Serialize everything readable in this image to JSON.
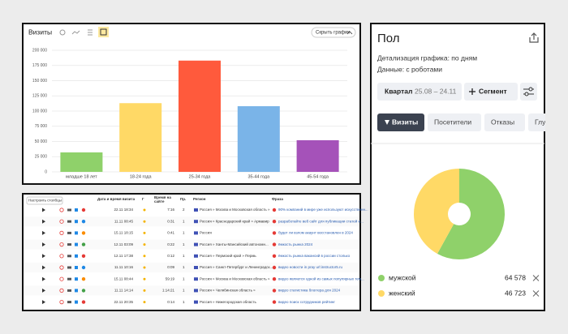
{
  "chart_data": [
    {
      "type": "bar",
      "title": "Визиты",
      "hide_button": "Скрыть график",
      "categories": [
        "младше 18 лет",
        "18-24 года",
        "25-34 года",
        "35-44 года",
        "45-54 года"
      ],
      "values": [
        32000,
        113000,
        183000,
        108000,
        52000
      ],
      "colors": [
        "#8fd16a",
        "#ffd966",
        "#ff5a3c",
        "#7ab4e8",
        "#a552b9"
      ],
      "ylim": [
        0,
        200000
      ],
      "yticks": [
        {
          "value": 0,
          "label": "0"
        },
        {
          "value": 25000,
          "label": "25 000"
        },
        {
          "value": 50000,
          "label": "50 000"
        },
        {
          "value": 75000,
          "label": "75 000"
        },
        {
          "value": 100000,
          "label": "100 000"
        },
        {
          "value": 125000,
          "label": "125 000"
        },
        {
          "value": 150000,
          "label": "150 000"
        },
        {
          "value": 175000,
          "label": "175 000"
        },
        {
          "value": 200000,
          "label": "200 000"
        }
      ],
      "grid": true
    },
    {
      "type": "pie",
      "title": "Пол",
      "categories": [
        "мужской",
        "женский"
      ],
      "values": [
        64578,
        46723
      ],
      "value_labels": [
        "64 578",
        "46 723"
      ],
      "colors": [
        "#8fd16a",
        "#ffd966"
      ]
    }
  ],
  "report_panel": {
    "detail": "Детализация графика: по дням",
    "data": "Данные: с роботами",
    "period": "Квартал",
    "period_range": "25.08 – 24.11",
    "segment": "Сегмент",
    "tabs": [
      "Визиты",
      "Посетители",
      "Отказы",
      "Глу"
    ]
  },
  "table": {
    "settings_button": "Настроить столбцы",
    "columns": [
      "Дата и время визита",
      "Г",
      "Время на сайте",
      "Пр.",
      "Регион",
      "Фраза"
    ],
    "rows": [
      [
        "22.11 18:34",
        "7:16",
        "2",
        "Россия » Москва и Московская область »",
        "90% компаний в мире уже используют искусственн..."
      ],
      [
        "11.11 08:45",
        "0:31",
        "1",
        "Россия » Краснодарский край » Армавир",
        "разработайте веб сайт для публикации статей и..."
      ],
      [
        "15.11 18:15",
        "0:41",
        "1",
        "Россия",
        "будет ли взлом акаунт восстановлен в 2024"
      ],
      [
        "12.11 03:09",
        "0:22",
        "1",
        "Россия » Ханты-Мансийский автономн...",
        "ёмкость рынка 2024"
      ],
      [
        "12.11 17:38",
        "0:12",
        "1",
        "Россия » Пермский край » Пермь",
        "ёмкость рынка вакансий в россии столько"
      ],
      [
        "11.11 10:16",
        "0:09",
        "1",
        "Россия » Санкт-Петербург и Ленинградск...",
        "видео новости in pray url:instructor5.ru"
      ],
      [
        "15.11 08:44",
        "59:19",
        "1",
        "Россия » Москва и Московская область »",
        "видео является одной из самых популярных тем..."
      ],
      [
        "11.11 14:14",
        "1:14:21",
        "1",
        "Россия » Челябинская область »",
        "видео статистика блоггера для 2024"
      ],
      [
        "22.11 20:35",
        "0:14",
        "1",
        "Россия » Нижегородская область",
        "видео поиск сотрудников рейтинг"
      ]
    ]
  }
}
